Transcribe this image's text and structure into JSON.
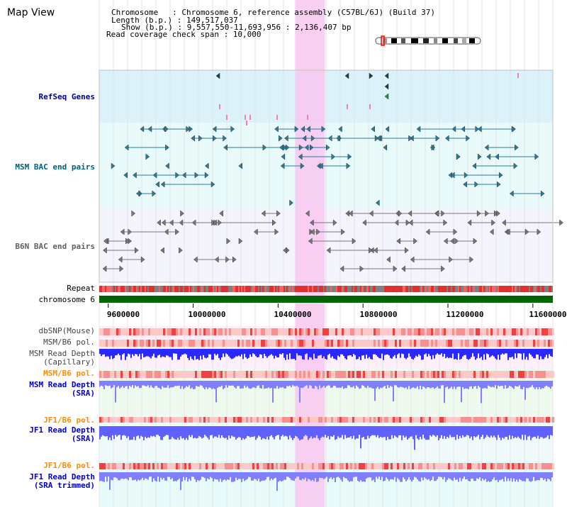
{
  "view_title": "Map View",
  "info": {
    "chromosome_line": "Chromosome   : Chromosome 6, reference assembly (C57BL/6J) (Build 37)",
    "length_line": "Length (b.p.) : 149,517,037",
    "show_line": "Show (b.p.) : 9,557,550-11,693,956 : 2,136,407 bp",
    "coverage_line": "Read coverage check span : 10,000"
  },
  "tracks": {
    "refseq": "RefSeq Genes",
    "msm_bac": "MSM BAC end pairs",
    "b6n_bac": "B6N BAC end pairs",
    "repeat": "Repeat",
    "chromosome": "chromosome 6",
    "dbsnp": "dbSNP(Mouse)",
    "msm_b6_pol_1": "MSM/B6 pol.",
    "msm_depth_cap_1": "MSM Read Depth",
    "msm_depth_cap_2": "(Capillary)",
    "msm_b6_pol_2": "MSM/B6 pol.",
    "msm_depth_sra_1": "MSM Read Depth",
    "msm_depth_sra_2": "(SRA)",
    "jf1_b6_pol_1": "JF1/B6 pol.",
    "jf1_depth_sra_1": "JF1 Read Depth",
    "jf1_depth_sra_2": "(SRA)",
    "jf1_b6_pol_2": "JF1/B6 pol.",
    "jf1_depth_trim_1": "JF1 Read Depth",
    "jf1_depth_trim_2": "(SRA trimmed)"
  },
  "axis": {
    "ticks": [
      "9600000",
      "10000000",
      "10400000",
      "10800000",
      "11200000",
      "11600000"
    ],
    "tick_values": [
      9600000,
      10000000,
      10400000,
      10800000,
      11200000,
      11600000
    ],
    "range": [
      9557550,
      11693956
    ]
  },
  "highlight_region": [
    10480000,
    10620000
  ],
  "colors": {
    "refseq_label": "#00008b",
    "msm_label": "#006080",
    "b6n_label": "#606060",
    "orange_label": "#ff8c00",
    "blue_label": "#0000cc",
    "refseq_bg": "#dcf2fb",
    "msm_bg": "#e8fafa",
    "highlight": "#f8c8f0",
    "chromosome_bar": "#006400",
    "depth_blue": "#2828ff",
    "depth_light": "#8080ff"
  }
}
